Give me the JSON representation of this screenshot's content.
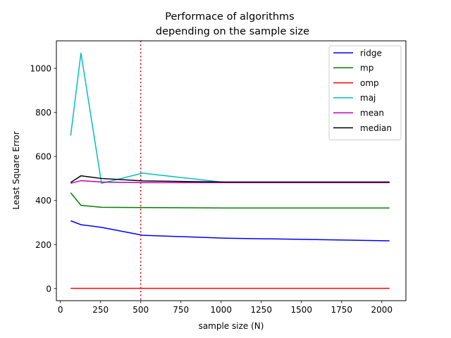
{
  "chart_data": {
    "type": "line",
    "title": [
      "Performace of algorithms",
      "depending on the sample size"
    ],
    "xlabel": "sample size (N)",
    "ylabel": "Least Square Error",
    "xlim": [
      -25,
      2150
    ],
    "ylim": [
      -55,
      1125
    ],
    "xticks": [
      0,
      250,
      500,
      750,
      1000,
      1250,
      1500,
      1750,
      2000
    ],
    "yticks": [
      0,
      200,
      400,
      600,
      800,
      1000
    ],
    "grid": false,
    "legend_position": "top-right",
    "x": [
      64,
      128,
      256,
      512,
      1024,
      2048
    ],
    "series": [
      {
        "name": "ridge",
        "color": "#0000ff",
        "values": [
          308,
          290,
          278,
          242,
          229,
          217
        ]
      },
      {
        "name": "mp",
        "color": "#008000",
        "values": [
          435,
          378,
          369,
          368,
          366,
          366
        ]
      },
      {
        "name": "omp",
        "color": "#ff0000",
        "values": [
          1,
          1,
          1,
          1,
          1,
          1
        ]
      },
      {
        "name": "maj",
        "color": "#00bfbf",
        "values": [
          695,
          1070,
          478,
          524,
          482,
          482
        ]
      },
      {
        "name": "mean",
        "color": "#bf00bf",
        "values": [
          478,
          490,
          484,
          481,
          481,
          481
        ]
      },
      {
        "name": "median",
        "color": "#000000",
        "values": [
          482,
          512,
          500,
          489,
          484,
          484
        ]
      }
    ],
    "reference_line": {
      "x": 500,
      "color": "#cc0000",
      "style": "dotted"
    }
  }
}
